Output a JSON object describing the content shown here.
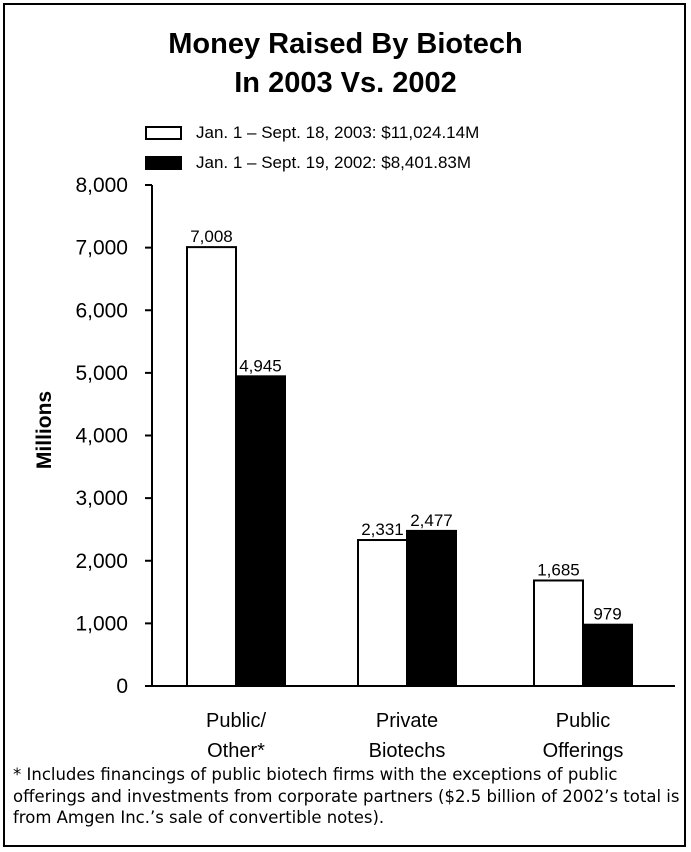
{
  "chart_data": {
    "type": "bar",
    "title": [
      "Money Raised By Biotech",
      "In 2003 Vs. 2002"
    ],
    "ylabel": "Millions",
    "ylim": [
      0,
      8000
    ],
    "yticks": [
      "0",
      "1,000",
      "2,000",
      "3,000",
      "4,000",
      "5,000",
      "6,000",
      "7,000",
      "8,000"
    ],
    "yticks_values": [
      0,
      1000,
      2000,
      3000,
      4000,
      5000,
      6000,
      7000,
      8000
    ],
    "categories": [
      [
        "Public/",
        "Other*"
      ],
      [
        "Private",
        "Biotechs"
      ],
      [
        "Public",
        "Offerings"
      ]
    ],
    "series": [
      {
        "name": "Jan. 1 – Sept. 18, 2003: $11,024.14M",
        "values": [
          7008,
          2331,
          1685
        ],
        "labels": [
          "7,008",
          "2,331",
          "1,685"
        ],
        "color": "#ffffff"
      },
      {
        "name": "Jan. 1 – Sept. 19, 2002: $8,401.83M",
        "values": [
          4945,
          2477,
          979
        ],
        "labels": [
          "4,945",
          "2,477",
          "979"
        ],
        "color": "#000000"
      }
    ],
    "legend_position": "top-left",
    "grid": false
  },
  "footnote": "* Includes financings of public biotech firms with the exceptions of public offerings and investments from corporate partners ($2.5 billion of 2002’s total is from Amgen Inc.’s sale of convertible notes)."
}
